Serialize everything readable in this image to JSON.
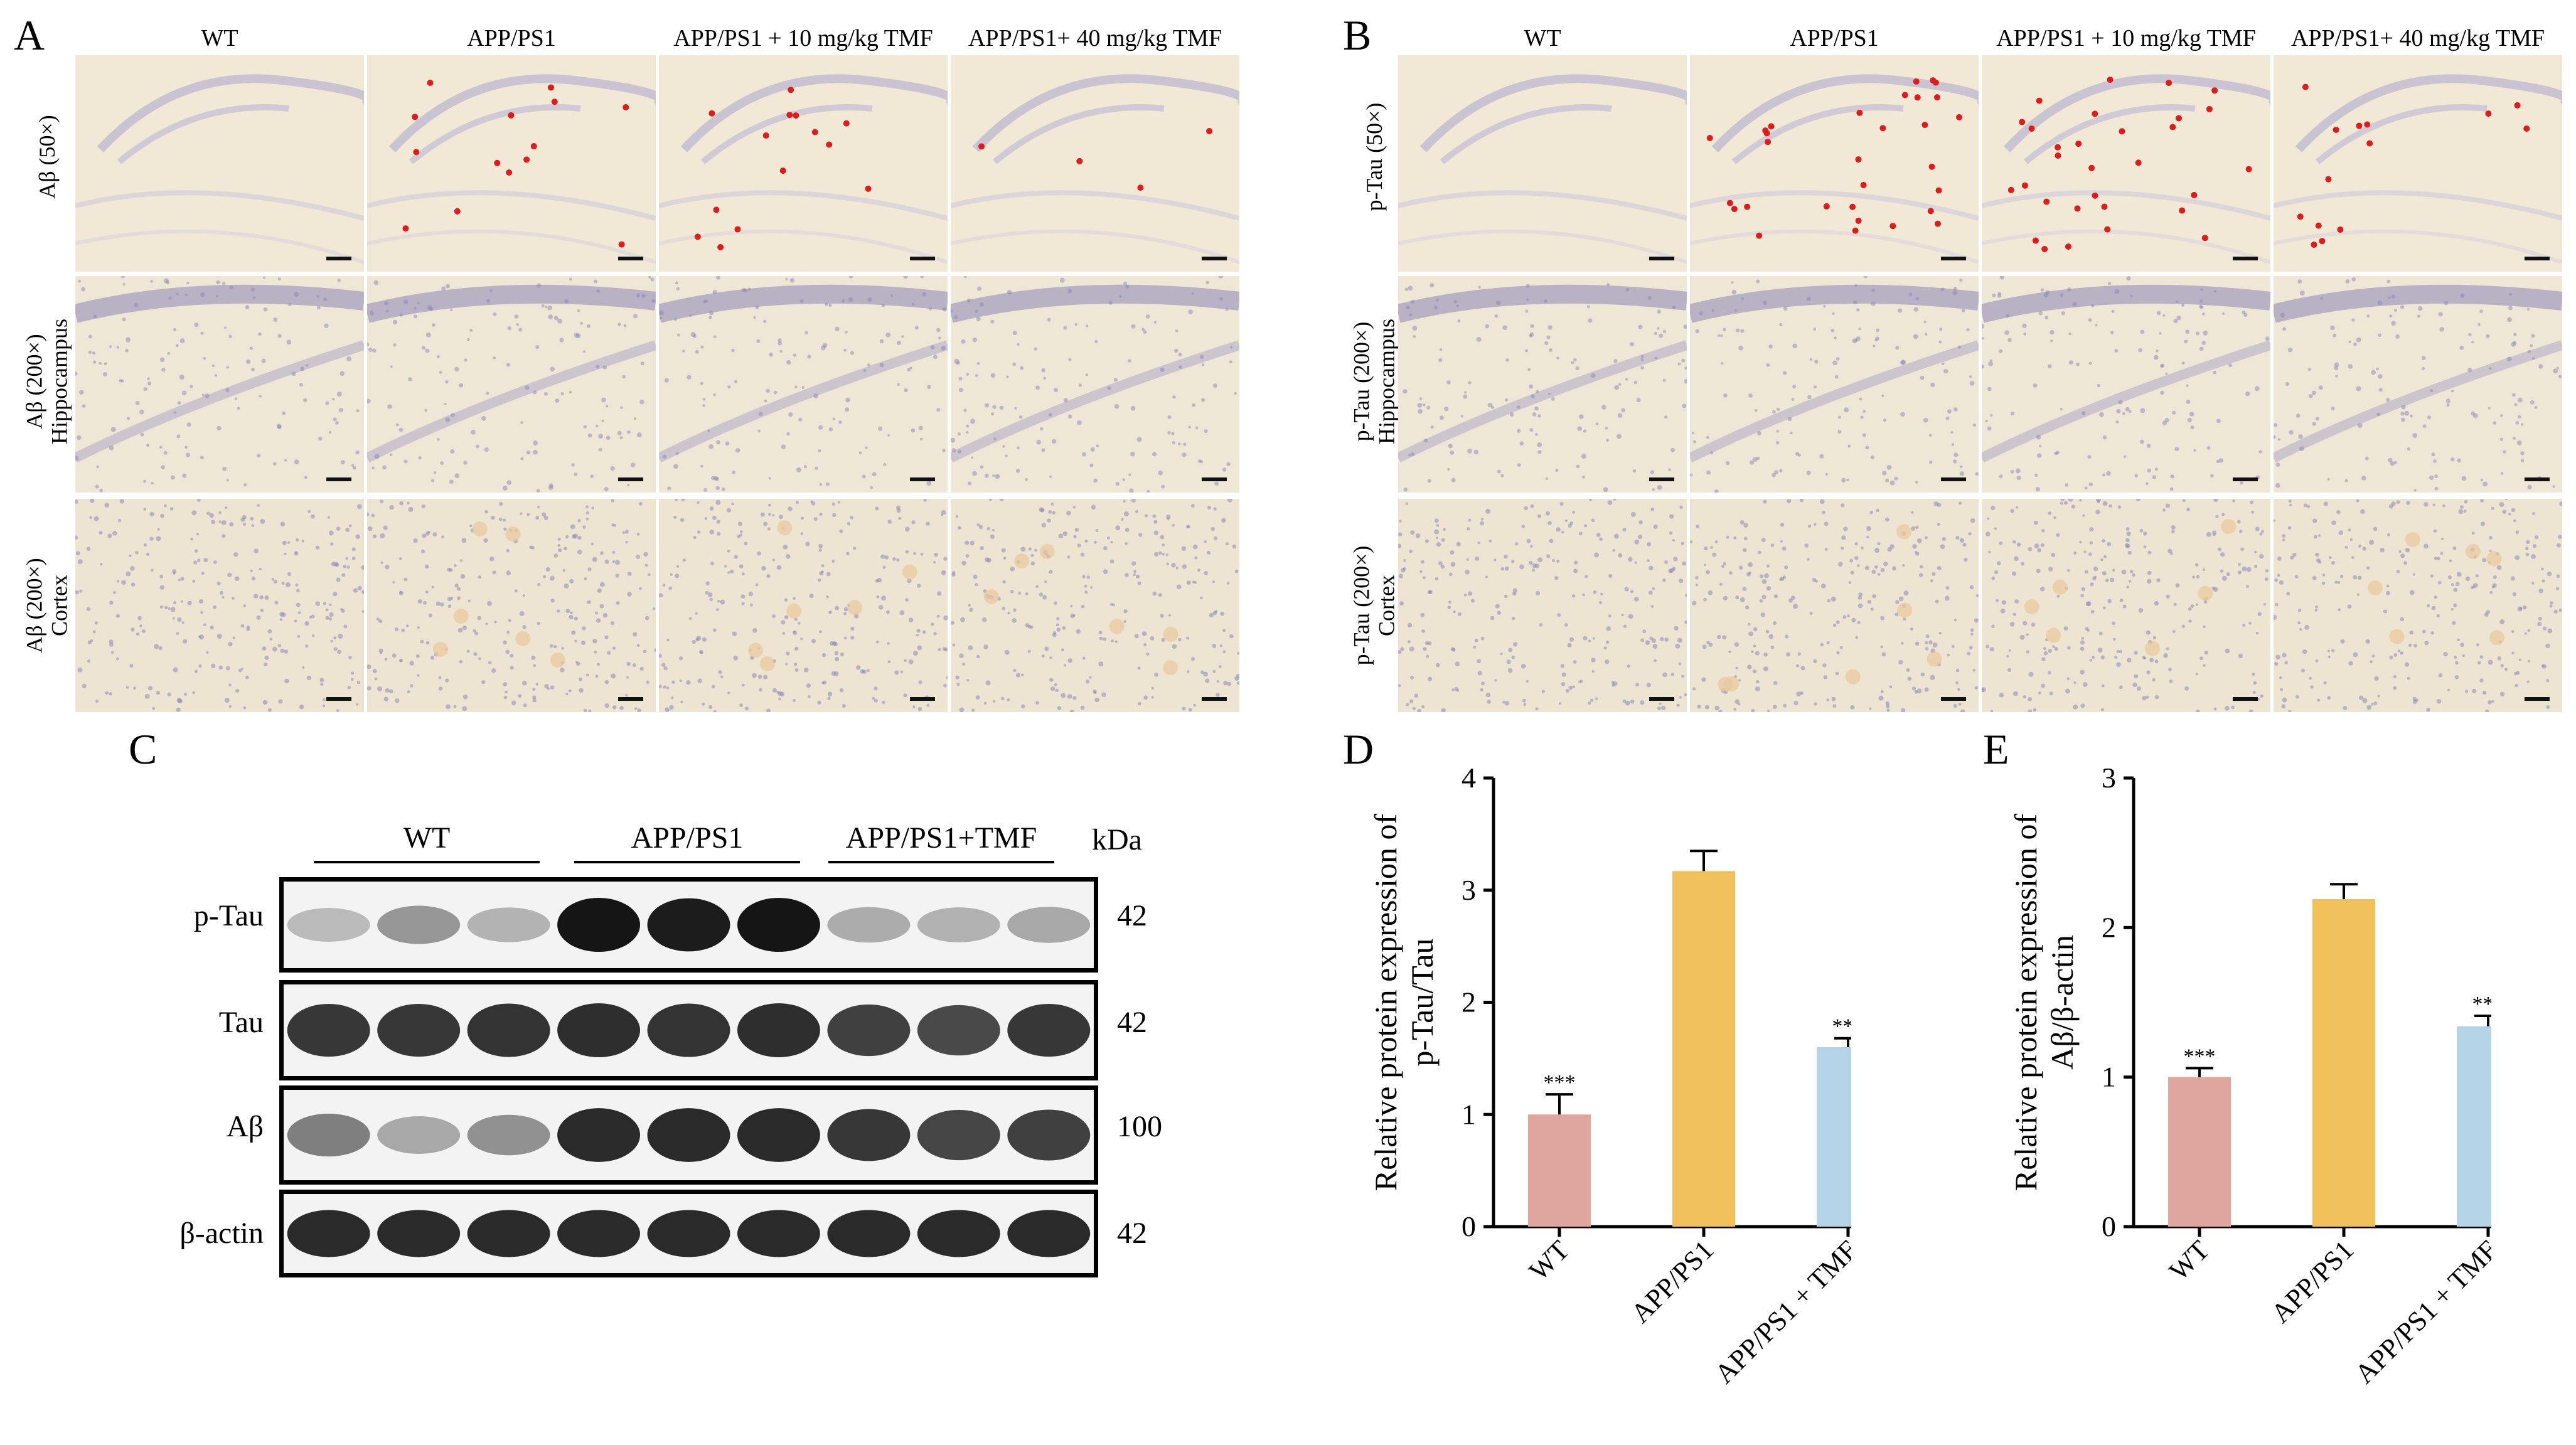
{
  "panels": {
    "A": {
      "letter": "A",
      "columns": [
        "WT",
        "APP/PS1",
        "APP/PS1 + 10 mg/kg TMF",
        "APP/PS1+ 40 mg/kg TMF"
      ],
      "rows": [
        {
          "line1": "Aβ (50×)",
          "line2": ""
        },
        {
          "line1": "Aβ (200×)",
          "line2": "Hippocampus"
        },
        {
          "line1": "Aβ (200×)",
          "line2": "Cortex"
        }
      ]
    },
    "B": {
      "letter": "B",
      "columns": [
        "WT",
        "APP/PS1",
        "APP/PS1 + 10 mg/kg TMF",
        "APP/PS1+ 40 mg/kg TMF"
      ],
      "rows": [
        {
          "line1": "p-Tau (50×)",
          "line2": ""
        },
        {
          "line1": "p-Tau (200×)",
          "line2": "Hippocampus"
        },
        {
          "line1": "p-Tau (200×)",
          "line2": "Cortex"
        }
      ]
    },
    "C": {
      "letter": "C",
      "groups": [
        "WT",
        "APP/PS1",
        "APP/PS1+TMF"
      ],
      "kda_header": "kDa",
      "bands": [
        {
          "label": "p-Tau",
          "kda": "42",
          "intensity": [
            0.22,
            0.38,
            0.25,
            0.95,
            0.92,
            0.95,
            0.28,
            0.26,
            0.3
          ]
        },
        {
          "label": "Tau",
          "kda": "42",
          "intensity": [
            0.8,
            0.8,
            0.82,
            0.84,
            0.82,
            0.84,
            0.76,
            0.72,
            0.8
          ]
        },
        {
          "label": "Aβ",
          "kda": "100",
          "intensity": [
            0.48,
            0.3,
            0.4,
            0.86,
            0.86,
            0.86,
            0.8,
            0.74,
            0.76
          ]
        },
        {
          "label": "β-actin",
          "kda": "42",
          "intensity": [
            0.86,
            0.86,
            0.86,
            0.86,
            0.86,
            0.86,
            0.86,
            0.86,
            0.86
          ]
        }
      ]
    }
  },
  "chart_data": [
    {
      "panel": "D",
      "type": "bar",
      "ylabel_line1": "Relative protein expression of",
      "ylabel_line2": "p-Tau/Tau",
      "categories": [
        "WT",
        "APP/PS1",
        "APP/PS1 + TMF"
      ],
      "values": [
        1.0,
        3.17,
        1.6
      ],
      "errors": [
        0.18,
        0.18,
        0.08
      ],
      "annotations": [
        "***",
        "",
        "***"
      ],
      "colors": [
        "#dfa69e",
        "#f0c05b",
        "#b4d3e6"
      ],
      "ylim": [
        0,
        4
      ],
      "yticks": [
        "0",
        "1",
        "2",
        "3",
        "4"
      ]
    },
    {
      "panel": "E",
      "type": "bar",
      "ylabel_line1": "Relative protein expression of",
      "ylabel_line2": "Aβ/β-actin",
      "categories": [
        "WT",
        "APP/PS1",
        "APP/PS1 + TMF"
      ],
      "values": [
        1.0,
        2.19,
        1.34
      ],
      "errors": [
        0.06,
        0.1,
        0.07
      ],
      "annotations": [
        "***",
        "",
        "***"
      ],
      "colors": [
        "#dfa69e",
        "#f0c05b",
        "#b4d3e6"
      ],
      "ylim": [
        0,
        3
      ],
      "yticks": [
        "0",
        "1",
        "2",
        "3"
      ]
    }
  ]
}
